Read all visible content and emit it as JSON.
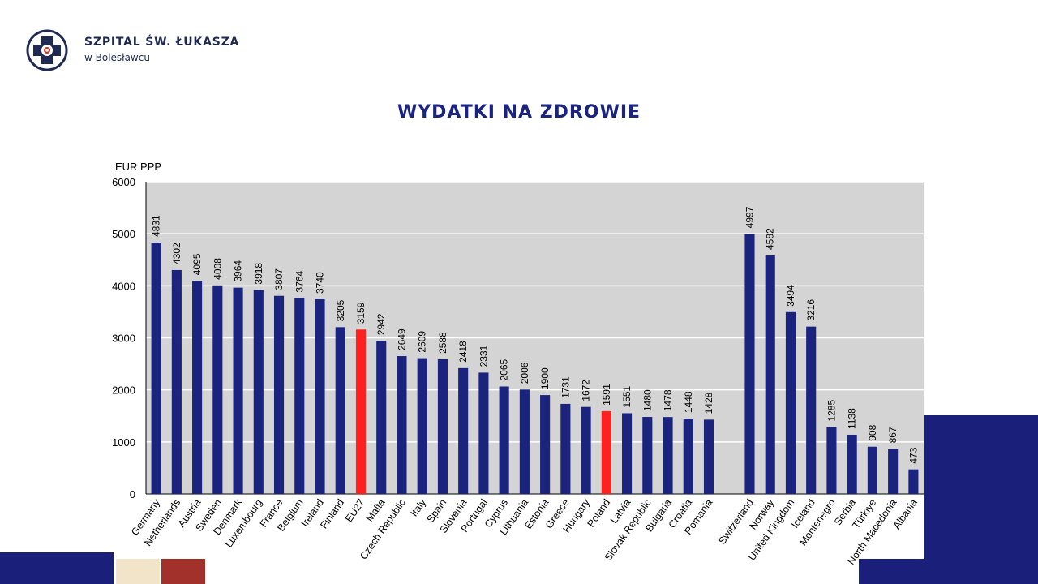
{
  "brand": {
    "name": "SZPITAL ŚW. ŁUKASZA",
    "subtitle": "w Bolesławcu",
    "logo_icon": "medical-cross-logo-icon"
  },
  "slide": {
    "title": "WYDATKI NA ZDROWIE"
  },
  "colors": {
    "bar": "#1a237e",
    "highlight": "#ff2020",
    "plot_bg": "#d4d4d4",
    "grid": "#ffffff",
    "deco_navy": "#1a1f7a",
    "deco_cream": "#f1e4c9",
    "deco_red": "#a3312b"
  },
  "chart_data": {
    "type": "bar",
    "ylabel": "EUR PPP",
    "ylim": [
      0,
      6000
    ],
    "yticks": [
      0,
      1000,
      2000,
      3000,
      4000,
      5000,
      6000
    ],
    "grid": true,
    "categories": [
      "Germany",
      "Netherlands",
      "Austria",
      "Sweden",
      "Denmark",
      "Luxembourg",
      "France",
      "Belgium",
      "Ireland",
      "Finland",
      "EU27",
      "Malta",
      "Czech Republic",
      "Italy",
      "Spain",
      "Slovenia",
      "Portugal",
      "Cyprus",
      "Lithuania",
      "Estonia",
      "Greece",
      "Hungary",
      "Poland",
      "Latvia",
      "Slovak Republic",
      "Bulgaria",
      "Croatia",
      "Romania",
      "",
      "Switzerland",
      "Norway",
      "United Kingdom",
      "Iceland",
      "Montenegro",
      "Serbia",
      "Türkiye",
      "North Macedonia",
      "Albania"
    ],
    "values": [
      4831,
      4302,
      4095,
      4008,
      3964,
      3918,
      3807,
      3764,
      3740,
      3205,
      3159,
      2942,
      2649,
      2609,
      2588,
      2418,
      2331,
      2065,
      2006,
      1900,
      1731,
      1672,
      1591,
      1551,
      1480,
      1478,
      1448,
      1428,
      null,
      4997,
      4582,
      3494,
      3216,
      1285,
      1138,
      908,
      867,
      473
    ],
    "value_labels": [
      "4831",
      "4302",
      "4095",
      "4008",
      "3964",
      "3918",
      "3807",
      "3764",
      "3740",
      "3205",
      "3159",
      "2942",
      "2649",
      "2609",
      "2588",
      "2418",
      "2331",
      "2065",
      "2006",
      "1900",
      "1731",
      "1672",
      "1591",
      "1551",
      "1480",
      "1478",
      "1448",
      "1428",
      "",
      "4997",
      "4582",
      "3494",
      "3216",
      "1285",
      "1138",
      "908",
      "867",
      "473"
    ],
    "highlighted": [
      "EU27",
      "Poland"
    ]
  }
}
